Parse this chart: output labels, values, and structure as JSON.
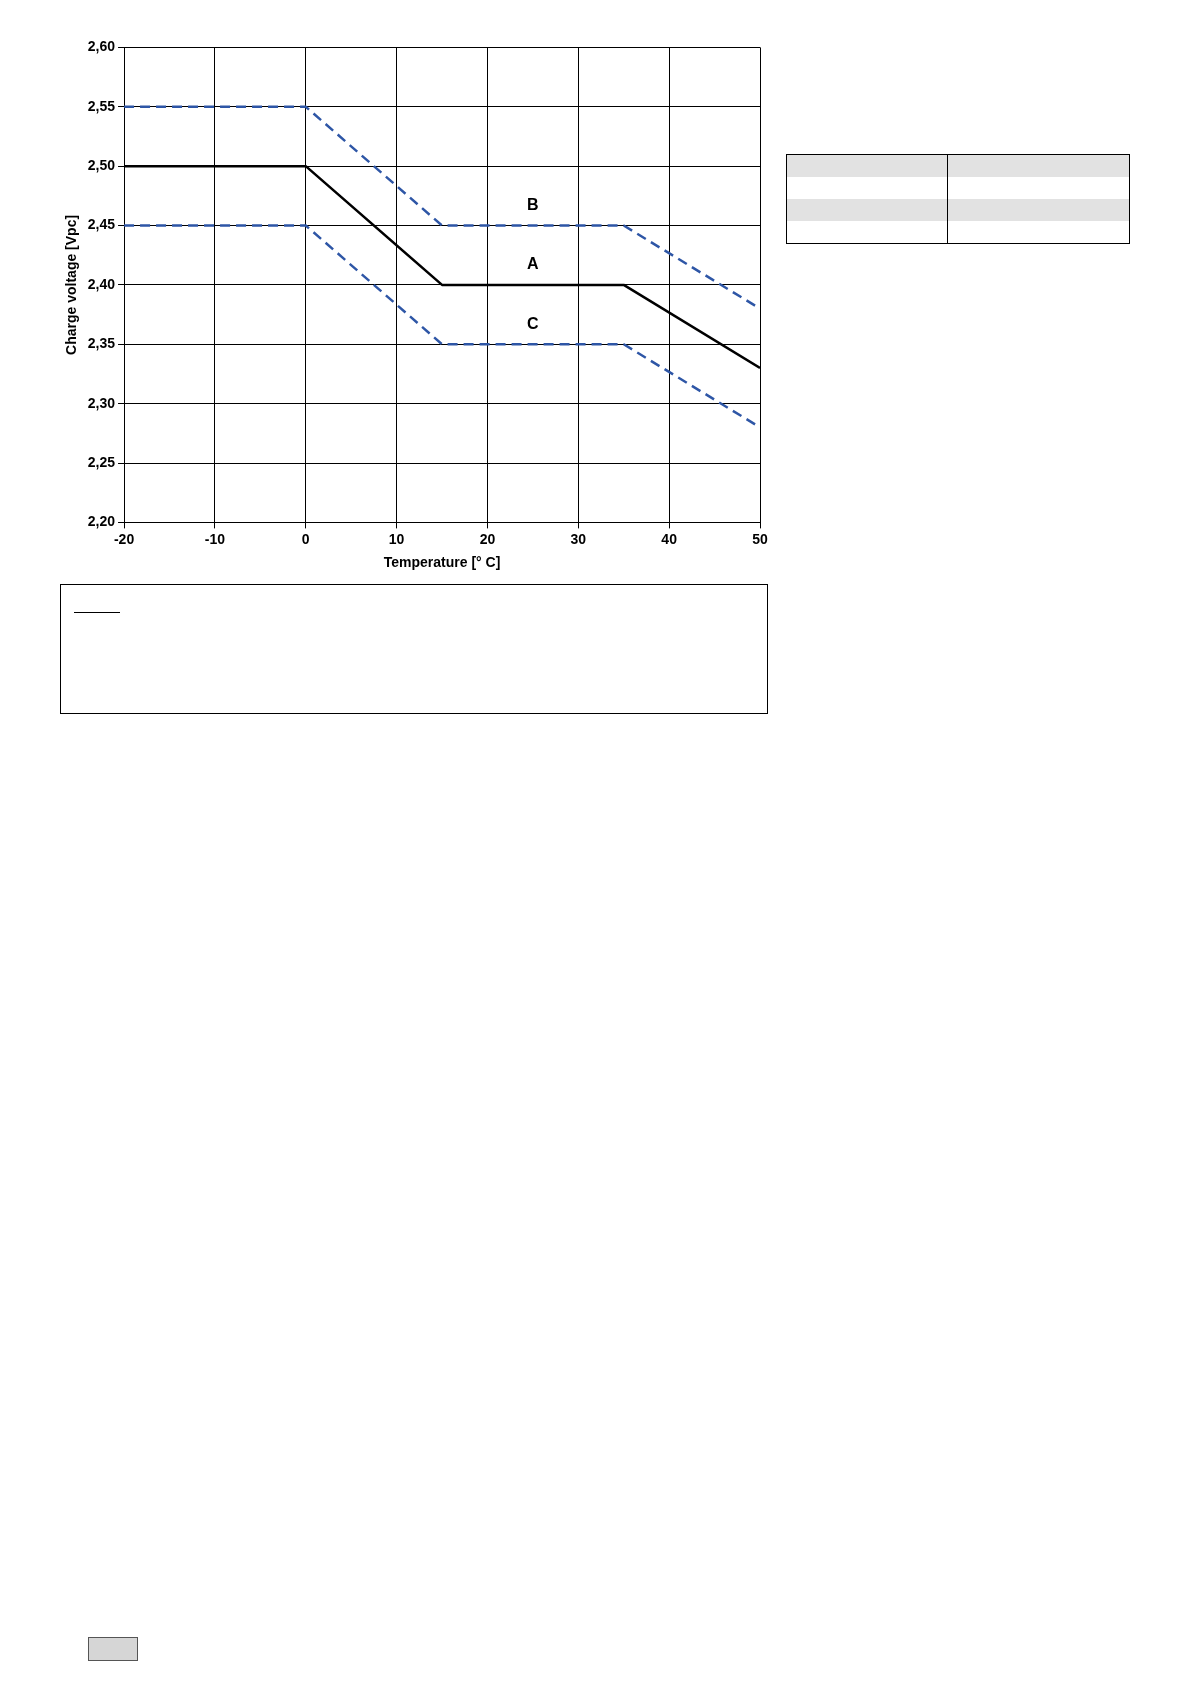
{
  "chart_data": {
    "type": "line",
    "xlabel": "Temperature [° C]",
    "ylabel": "Charge voltage [Vpc]",
    "x": [
      -20,
      0,
      15,
      35,
      50
    ],
    "series": [
      {
        "name": "A",
        "color": "#000000",
        "values": [
          2.5,
          2.5,
          2.4,
          2.4,
          2.33
        ],
        "line_style": "solid"
      },
      {
        "name": "B",
        "color": "#2e56a6",
        "values": [
          2.55,
          2.55,
          2.45,
          2.45,
          2.38
        ],
        "line_style": "dashed"
      },
      {
        "name": "C",
        "color": "#2e56a6",
        "values": [
          2.45,
          2.45,
          2.35,
          2.35,
          2.28
        ],
        "line_style": "dashed"
      }
    ],
    "xlim": [
      -20,
      50
    ],
    "xticks": [
      -20,
      -10,
      0,
      10,
      20,
      30,
      40,
      50
    ],
    "ylim": [
      2.2,
      2.6
    ],
    "yticks": [
      {
        "value": 2.2,
        "label": "2,20"
      },
      {
        "value": 2.25,
        "label": "2,25"
      },
      {
        "value": 2.3,
        "label": "2,30"
      },
      {
        "value": 2.35,
        "label": "2,35"
      },
      {
        "value": 2.4,
        "label": "2,40"
      },
      {
        "value": 2.45,
        "label": "2,45"
      },
      {
        "value": 2.5,
        "label": "2,50"
      },
      {
        "value": 2.55,
        "label": "2,55"
      },
      {
        "value": 2.6,
        "label": "2,60"
      }
    ],
    "grid": true,
    "marker": "none",
    "legend": false
  }
}
